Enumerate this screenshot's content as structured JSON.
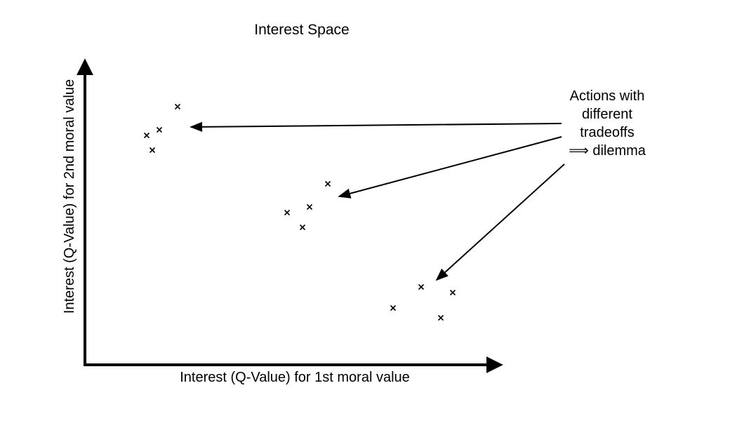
{
  "title": "Interest Space",
  "axes": {
    "x_label": "Interest (Q-Value) for 1st moral value",
    "y_label": "Interest (Q-Value) for 2nd moral value"
  },
  "annotation": {
    "lines": [
      "Actions with",
      "different",
      "tradeoffs",
      "⟹ dilemma"
    ]
  },
  "marker_symbol": "×",
  "icons": {
    "point_marker": "cross-mark-icon",
    "arrow": "arrow-icon"
  },
  "clusters": [
    {
      "name": "cluster-top-left",
      "point_count": 4
    },
    {
      "name": "cluster-middle",
      "point_count": 4
    },
    {
      "name": "cluster-bottom-right",
      "point_count": 4
    }
  ]
}
